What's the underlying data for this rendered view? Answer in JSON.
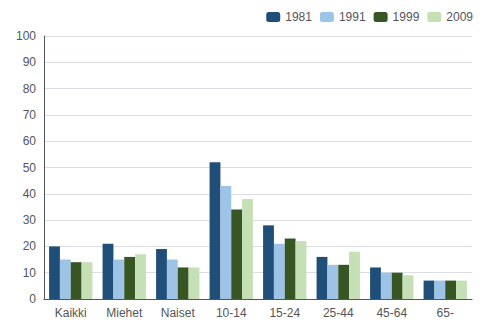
{
  "chart_data": {
    "type": "bar",
    "categories": [
      "Kaikki",
      "Miehet",
      "Naiset",
      "10-14",
      "15-24",
      "25-44",
      "45-64",
      "65-"
    ],
    "series": [
      {
        "name": "1981",
        "color": "#1F4E79",
        "values": [
          20,
          21,
          19,
          52,
          28,
          16,
          12,
          7
        ]
      },
      {
        "name": "1991",
        "color": "#9DC3E6",
        "values": [
          15,
          15,
          15,
          43,
          21,
          13,
          10,
          7
        ]
      },
      {
        "name": "1999",
        "color": "#375623",
        "values": [
          14,
          16,
          12,
          34,
          23,
          13,
          10,
          7
        ]
      },
      {
        "name": "2009",
        "color": "#C5E0B4",
        "values": [
          14,
          17,
          12,
          38,
          22,
          18,
          9,
          7
        ]
      }
    ],
    "ylim": [
      0,
      100
    ],
    "yticks": [
      0,
      10,
      20,
      30,
      40,
      50,
      60,
      70,
      80,
      90,
      100
    ],
    "grid": true,
    "legend": "upper right"
  }
}
